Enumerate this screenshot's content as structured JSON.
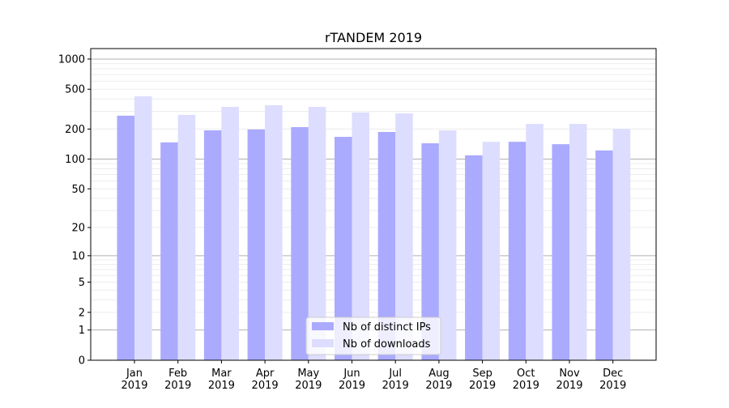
{
  "chart_data": {
    "type": "bar",
    "title": "rTANDEM 2019",
    "xlabel": "",
    "ylabel": "",
    "yscale": "log10(y+1)",
    "ylim": [
      0,
      1270
    ],
    "yticks": [
      0,
      1,
      2,
      5,
      10,
      20,
      50,
      100,
      200,
      500,
      1000
    ],
    "grid": true,
    "legend_position": "bottom-center",
    "categories": [
      "Jan\n2019",
      "Feb\n2019",
      "Mar\n2019",
      "Apr\n2019",
      "May\n2019",
      "Jun\n2019",
      "Jul\n2019",
      "Aug\n2019",
      "Sep\n2019",
      "Oct\n2019",
      "Nov\n2019",
      "Dec\n2019"
    ],
    "series": [
      {
        "name": "Nb of distinct IPs",
        "color": "#aaaaff",
        "values": [
          272,
          147,
          194,
          198,
          209,
          167,
          187,
          144,
          109,
          149,
          141,
          122
        ]
      },
      {
        "name": "Nb of downloads",
        "color": "#ddddff",
        "values": [
          425,
          277,
          333,
          346,
          333,
          293,
          287,
          194,
          149,
          225,
          225,
          201
        ]
      }
    ]
  }
}
